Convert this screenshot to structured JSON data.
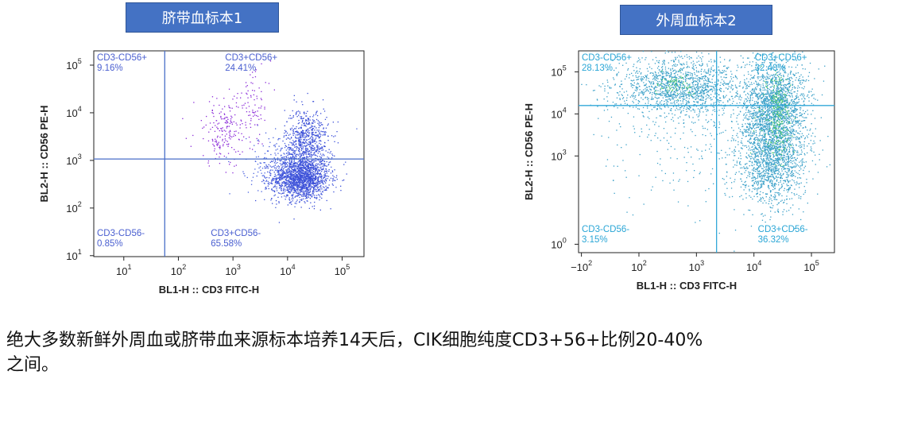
{
  "panels": [
    {
      "title": "脐带血标本1"
    },
    {
      "title": "外周血标本2"
    }
  ],
  "caption": {
    "line1": "绝大多数新鲜外周血或脐带血来源标本培养14天后，CIK细胞纯度CD3+56+比例20-40%",
    "line2": "之间。"
  },
  "colors": {
    "plot1_points": "#3b4fd8",
    "plot1_magenta": "#8a2bd8",
    "plot1_axis": "#4a6fc8",
    "plot2_points": "#3aa0c8",
    "plot2_green": "#49c86a",
    "plot2_axis": "#33a8d8"
  },
  "chart_data": [
    {
      "type": "scatter",
      "title": "脐带血标本1",
      "xlabel": "BL1-H :: CD3 FITC-H",
      "ylabel": "BL2-H :: CD56 PE-H",
      "x_scale": "log",
      "y_scale": "log",
      "x_ticks": [
        {
          "base": "10",
          "exp": "1"
        },
        {
          "base": "10",
          "exp": "2"
        },
        {
          "base": "10",
          "exp": "3"
        },
        {
          "base": "10",
          "exp": "4"
        },
        {
          "base": "10",
          "exp": "5"
        }
      ],
      "y_ticks": [
        {
          "base": "10",
          "exp": "1"
        },
        {
          "base": "10",
          "exp": "2"
        },
        {
          "base": "10",
          "exp": "3"
        },
        {
          "base": "10",
          "exp": "4"
        },
        {
          "base": "10",
          "exp": "5"
        }
      ],
      "xlim_log10": [
        0.45,
        5.4
      ],
      "ylim_log10": [
        0.98,
        5.3
      ],
      "gate_log10": [
        1.75,
        3.03
      ],
      "quadrants": [
        {
          "position": "top-left",
          "label": "CD3-CD56+",
          "percent": "9.16%"
        },
        {
          "position": "top-right",
          "label": "CD3+CD56+",
          "percent": "24.41%"
        },
        {
          "position": "bottom-left",
          "label": "CD3-CD56-",
          "percent": "0.85%"
        },
        {
          "position": "bottom-right",
          "label": "CD3+CD56-",
          "percent": "65.58%"
        }
      ],
      "populations_log10": [
        {
          "cx": 4.25,
          "cy": 2.62,
          "sx": 0.26,
          "sy": 0.22,
          "n": 1500,
          "color": "#3b4fd8"
        },
        {
          "cx": 4.35,
          "cy": 3.4,
          "sx": 0.2,
          "sy": 0.35,
          "n": 650,
          "color": "#3b4fd8"
        },
        {
          "cx": 4.0,
          "cy": 2.9,
          "sx": 0.35,
          "sy": 0.35,
          "n": 350,
          "color": "#4a63e0"
        },
        {
          "cx": 2.85,
          "cy": 3.6,
          "sx": 0.28,
          "sy": 0.35,
          "n": 200,
          "color": "#8a2bd8"
        },
        {
          "cx": 3.4,
          "cy": 4.3,
          "sx": 0.15,
          "sy": 0.35,
          "n": 70,
          "color": "#8a2bd8"
        }
      ]
    },
    {
      "type": "scatter",
      "title": "外周血标本2",
      "xlabel": "BL1-H :: CD3 FITC-H",
      "ylabel": "BL2-H :: CD56 PE-H",
      "x_scale": "biexponential",
      "y_scale": "biexponential",
      "x_ticks": [
        {
          "base": "−10",
          "exp": "2"
        },
        {
          "base": "10",
          "exp": "2"
        },
        {
          "base": "10",
          "exp": "3"
        },
        {
          "base": "10",
          "exp": "4"
        },
        {
          "base": "10",
          "exp": "5"
        }
      ],
      "y_ticks": [
        {
          "base": "10",
          "exp": "0"
        },
        {
          "base": "10",
          "exp": "3"
        },
        {
          "base": "10",
          "exp": "4"
        },
        {
          "base": "10",
          "exp": "5"
        }
      ],
      "xlim_display": [
        -0.2,
        4.25
      ],
      "ylim_display": [
        -0.2,
        4.6
      ],
      "gate_display": [
        2.2,
        3.3
      ],
      "quadrants": [
        {
          "position": "top-left",
          "label": "CD3-CD56+",
          "percent": "28.13%"
        },
        {
          "position": "top-right",
          "label": "CD3+CD56+",
          "percent": "32.40%"
        },
        {
          "position": "bottom-left",
          "label": "CD3-CD56-",
          "percent": "3.15%"
        },
        {
          "position": "bottom-right",
          "label": "CD3+CD56-",
          "percent": "36.32%"
        }
      ],
      "populations_display": [
        {
          "cx": 1.55,
          "cy": 3.75,
          "sx": 0.55,
          "sy": 0.35,
          "n": 1400,
          "color": "#3aa0c8"
        },
        {
          "cx": 3.2,
          "cy": 3.3,
          "sx": 0.28,
          "sy": 0.55,
          "n": 1700,
          "color": "#3aa0c8"
        },
        {
          "cx": 3.15,
          "cy": 2.0,
          "sx": 0.3,
          "sy": 0.55,
          "n": 1350,
          "color": "#3aa0c8"
        },
        {
          "cx": 2.2,
          "cy": 2.5,
          "sx": 1.0,
          "sy": 1.0,
          "n": 350,
          "color": "#3aa0c8"
        },
        {
          "cx": 3.25,
          "cy": 3.0,
          "sx": 0.12,
          "sy": 0.5,
          "n": 220,
          "color": "#49c86a"
        },
        {
          "cx": 1.5,
          "cy": 3.8,
          "sx": 0.2,
          "sy": 0.12,
          "n": 60,
          "color": "#49c86a"
        }
      ]
    }
  ]
}
